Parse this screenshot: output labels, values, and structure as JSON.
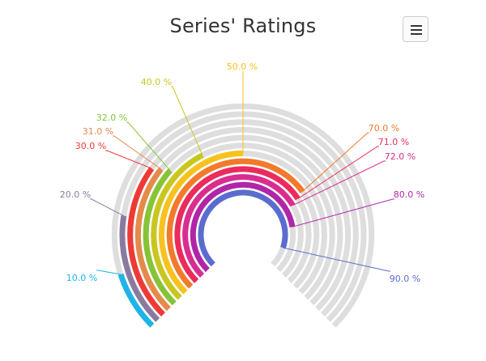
{
  "chart_data": {
    "type": "radialBar",
    "title": "Series' Ratings",
    "start_angle_deg": -135,
    "end_angle_deg": 135,
    "value_max": 100,
    "track_color": "#dedede",
    "series": [
      {
        "value": 10,
        "label": "10.0 %",
        "color": "#1fb4e8"
      },
      {
        "value": 20,
        "label": "20.0 %",
        "color": "#8b7aa0"
      },
      {
        "value": 30,
        "label": "30.0 %",
        "color": "#ee3a36"
      },
      {
        "value": 31,
        "label": "31.0 %",
        "color": "#e48a4a"
      },
      {
        "value": 32,
        "label": "32.0 %",
        "color": "#86c435"
      },
      {
        "value": 40,
        "label": "40.0 %",
        "color": "#c9c71f"
      },
      {
        "value": 50,
        "label": "50.0 %",
        "color": "#f7c21e"
      },
      {
        "value": 70,
        "label": "70.0 %",
        "color": "#f27a2a"
      },
      {
        "value": 71,
        "label": "71.0 %",
        "color": "#ec2a5c"
      },
      {
        "value": 72,
        "label": "72.0 %",
        "color": "#d92d8f"
      },
      {
        "value": 80,
        "label": "80.0 %",
        "color": "#b026a8"
      },
      {
        "value": 90,
        "label": "90.0 %",
        "color": "#5b6ccf"
      }
    ]
  },
  "toolbar": {
    "menu_icon": "hamburger-menu-icon"
  }
}
